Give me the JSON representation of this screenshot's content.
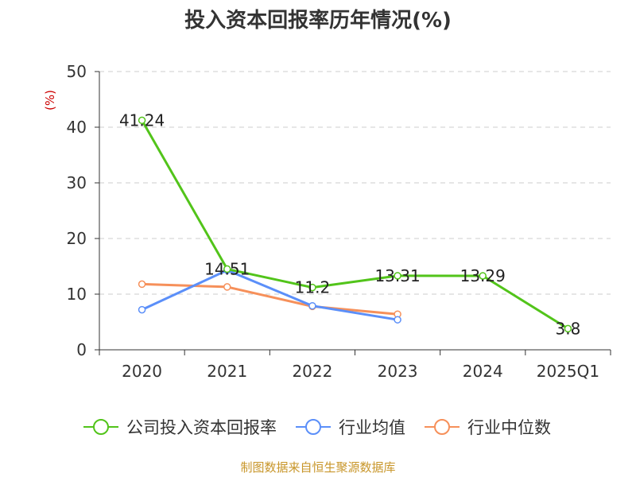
{
  "chart_data": {
    "type": "line",
    "title": "投入资本回报率历年情况(%)",
    "y_unit": "(%)",
    "categories": [
      "2020",
      "2021",
      "2022",
      "2023",
      "2024",
      "2025Q1"
    ],
    "ylim": [
      0,
      50
    ],
    "yticks": [
      0,
      10,
      20,
      30,
      40,
      50
    ],
    "grid": true,
    "legend_position": "bottom",
    "series": [
      {
        "name": "公司投入资本回报率",
        "color": "#52c41a",
        "values": [
          41.24,
          14.51,
          11.2,
          13.31,
          13.29,
          3.8
        ],
        "show_labels": true
      },
      {
        "name": "行业均值",
        "color": "#5b8ff9",
        "values": [
          7.2,
          14.3,
          7.9,
          5.4,
          null,
          null
        ],
        "show_labels": false
      },
      {
        "name": "行业中位数",
        "color": "#f6905a",
        "values": [
          11.8,
          11.3,
          7.8,
          6.4,
          null,
          null
        ],
        "show_labels": false
      }
    ]
  },
  "source": "制图数据来自恒生聚源数据库",
  "colors": {
    "unit": "#cc0000",
    "source": "#c8962a",
    "grid": "#cccccc",
    "axis": "#333333"
  }
}
